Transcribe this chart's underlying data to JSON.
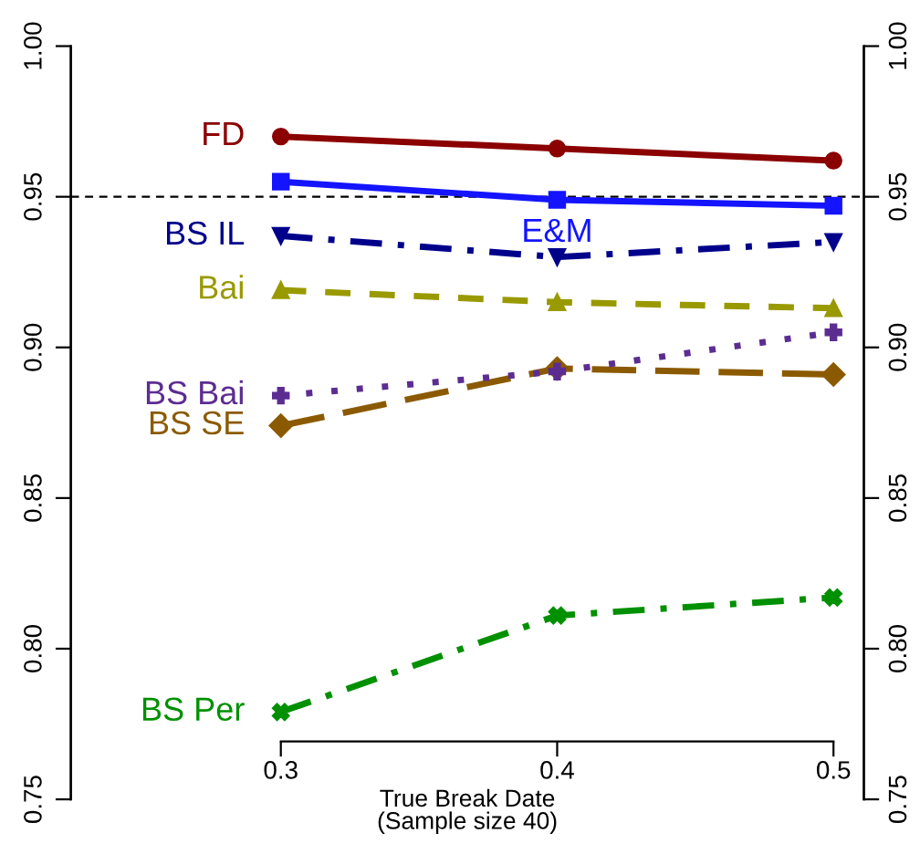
{
  "chart_data": {
    "type": "line",
    "xlabel": "True Break Date\n(Sample size 40)",
    "x": [
      0.3,
      0.4,
      0.5
    ],
    "xlim": [
      0.224,
      0.511
    ],
    "xticks": [
      0.3,
      0.4,
      0.5
    ],
    "ylim": [
      0.75,
      1.0
    ],
    "yticks": [
      {
        "value": 0.75,
        "label": "0.75"
      },
      {
        "value": 0.8,
        "label": "0.80"
      },
      {
        "value": 0.85,
        "label": "0.85"
      },
      {
        "value": 0.9,
        "label": "0.90"
      },
      {
        "value": 0.95,
        "label": "0.95"
      },
      {
        "value": 1.0,
        "label": "1.00"
      }
    ],
    "y2lim": [
      0.75,
      1.0
    ],
    "y2ticks": [
      {
        "value": 0.75,
        "label": "0.75"
      },
      {
        "value": 0.8,
        "label": "0.80"
      },
      {
        "value": 0.85,
        "label": "0.85"
      },
      {
        "value": 0.9,
        "label": "0.90"
      },
      {
        "value": 0.95,
        "label": "0.95"
      },
      {
        "value": 1.0,
        "label": "1.00"
      }
    ],
    "grid": false,
    "legend": false,
    "ref_lines": [
      {
        "axis": "y",
        "value": 0.95,
        "color": "#000000",
        "line_style": "dashed"
      }
    ],
    "series": [
      {
        "name": "FD",
        "color": "#8b0000",
        "marker": "circle",
        "line_style": "solid",
        "values": [
          0.97,
          0.966,
          0.962
        ]
      },
      {
        "name": "E&M",
        "color": "#1414ff",
        "marker": "square",
        "line_style": "solid",
        "values": [
          0.955,
          0.949,
          0.947
        ]
      },
      {
        "name": "BS IL",
        "color": "#00008b",
        "marker": "triangle_down",
        "line_style": "dashdot",
        "values": [
          0.937,
          0.93,
          0.935
        ]
      },
      {
        "name": "Bai",
        "color": "#999900",
        "marker": "triangle",
        "line_style": "dashed",
        "values": [
          0.919,
          0.915,
          0.913
        ]
      },
      {
        "name": "BS Bai",
        "color": "#5c2d91",
        "marker": "plus",
        "line_style": "dotted",
        "values": [
          0.884,
          0.892,
          0.905
        ]
      },
      {
        "name": "BS SE",
        "color": "#8b5a00",
        "marker": "diamond",
        "line_style": "longdash",
        "values": [
          0.874,
          0.893,
          0.891
        ]
      },
      {
        "name": "BS Per",
        "color": "#009000",
        "marker": "cross",
        "line_style": "dashdot",
        "values": [
          0.779,
          0.811,
          0.817
        ]
      }
    ]
  }
}
